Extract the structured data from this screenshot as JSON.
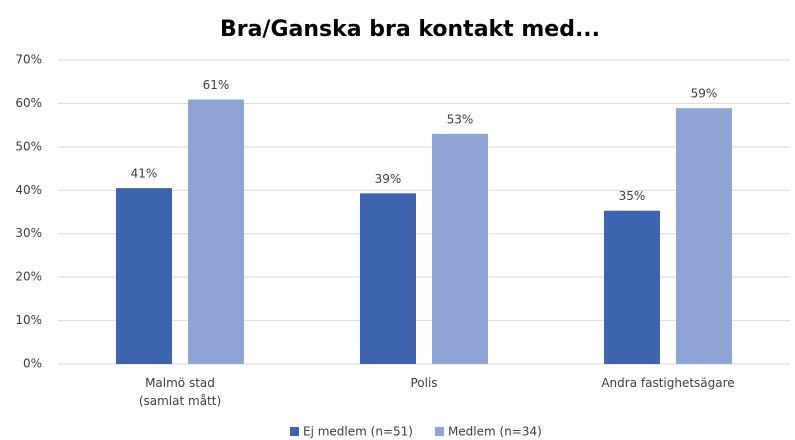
{
  "chart_data": {
    "type": "bar",
    "title": "Bra/Ganska bra kontakt med...",
    "categories": [
      "Malmö stad\n(samlat mått)",
      "Polis",
      "Andra fastighetsägare"
    ],
    "series": [
      {
        "name": "Ej medlem (n=51)",
        "color": "#3e64ad",
        "values": [
          40.5,
          39.3,
          35.3
        ],
        "value_labels": [
          "41%",
          "39%",
          "35%"
        ]
      },
      {
        "name": "Medlem (n=34)",
        "color": "#8fa5d6",
        "values": [
          60.9,
          53,
          58.9
        ],
        "value_labels": [
          "61%",
          "53%",
          "59%"
        ]
      }
    ],
    "ylim": [
      0,
      70
    ],
    "yticks": [
      {
        "value": 0,
        "label": "0%"
      },
      {
        "value": 10,
        "label": "10%"
      },
      {
        "value": 20,
        "label": "20%"
      },
      {
        "value": 30,
        "label": "30%"
      },
      {
        "value": 40,
        "label": "40%"
      },
      {
        "value": 50,
        "label": "50%"
      },
      {
        "value": 60,
        "label": "60%"
      },
      {
        "value": 70,
        "label": "70%"
      }
    ],
    "grid": true,
    "legend": "bottom"
  }
}
